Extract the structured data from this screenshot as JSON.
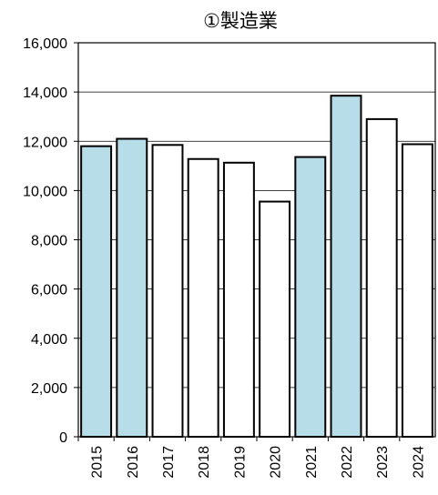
{
  "chart_data": {
    "type": "bar",
    "title": "①製造業",
    "xlabel": "",
    "ylabel": "",
    "ylim": [
      0,
      16000
    ],
    "yticks": [
      "0",
      "2,000",
      "4,000",
      "6,000",
      "8,000",
      "10,000",
      "12,000",
      "14,000",
      "16,000"
    ],
    "grid": true,
    "categories": [
      "2015",
      "2016",
      "2017",
      "2018",
      "2019",
      "2020",
      "2021",
      "2022",
      "2023",
      "2024"
    ],
    "values": [
      11800,
      12100,
      11850,
      11280,
      11130,
      9550,
      11360,
      13850,
      12900,
      11880
    ],
    "bar_colors": [
      "#b7dde8",
      "#b7dde8",
      "#ffffff",
      "#ffffff",
      "#ffffff",
      "#ffffff",
      "#b7dde8",
      "#b7dde8",
      "#ffffff",
      "#ffffff"
    ],
    "colors": {
      "highlight": "#b7dde8",
      "default": "#ffffff",
      "outline": "#000000"
    }
  }
}
